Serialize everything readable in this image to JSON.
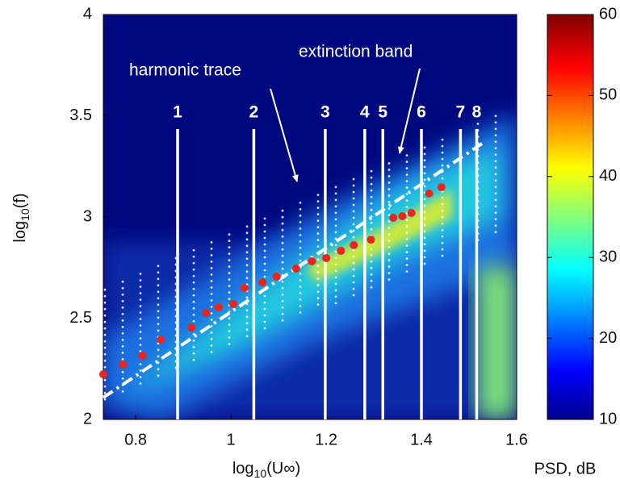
{
  "chart_data": {
    "type": "spectrogram",
    "xlabel": {
      "base": "log",
      "sub": "10",
      "arg": "(U∞)"
    },
    "ylabel": {
      "base": "log",
      "sub": "10",
      "arg": "(f)"
    },
    "xlim": [
      0.732,
      1.6
    ],
    "xticks": [
      0.8,
      1,
      1.2,
      1.4,
      1.6
    ],
    "ylim": [
      2,
      4
    ],
    "yticks": [
      2,
      2.5,
      3,
      3.5,
      4
    ],
    "colorbar": {
      "label": "PSD, dB",
      "lim": [
        10,
        60
      ],
      "ticks": [
        10,
        20,
        30,
        40,
        50,
        60
      ]
    },
    "annotations": [
      "harmonic trace",
      "extinction band"
    ],
    "stations": {
      "labels": [
        "1",
        "2",
        "3",
        "4",
        "5",
        "6",
        "7",
        "8"
      ],
      "x": [
        0.888,
        1.048,
        1.198,
        1.281,
        1.319,
        1.4,
        1.482,
        1.516
      ],
      "color": "#ffffff"
    },
    "peaks": {
      "color": "#e8251f",
      "x": [
        0.732,
        0.773,
        0.814,
        0.853,
        0.917,
        0.948,
        0.974,
        1.005,
        1.028,
        1.066,
        1.096,
        1.137,
        1.17,
        1.2,
        1.231,
        1.258,
        1.294,
        1.341,
        1.36,
        1.379,
        1.416,
        1.442
      ],
      "y": [
        2.223,
        2.271,
        2.315,
        2.394,
        2.454,
        2.526,
        2.554,
        2.57,
        2.649,
        2.677,
        2.705,
        2.745,
        2.781,
        2.797,
        2.833,
        2.861,
        2.888,
        2.996,
        3.004,
        3.02,
        3.116,
        3.147
      ]
    },
    "fit": {
      "x": [
        0.732,
        1.535
      ],
      "y": [
        2.108,
        3.375
      ],
      "color": "#ffffff"
    }
  }
}
